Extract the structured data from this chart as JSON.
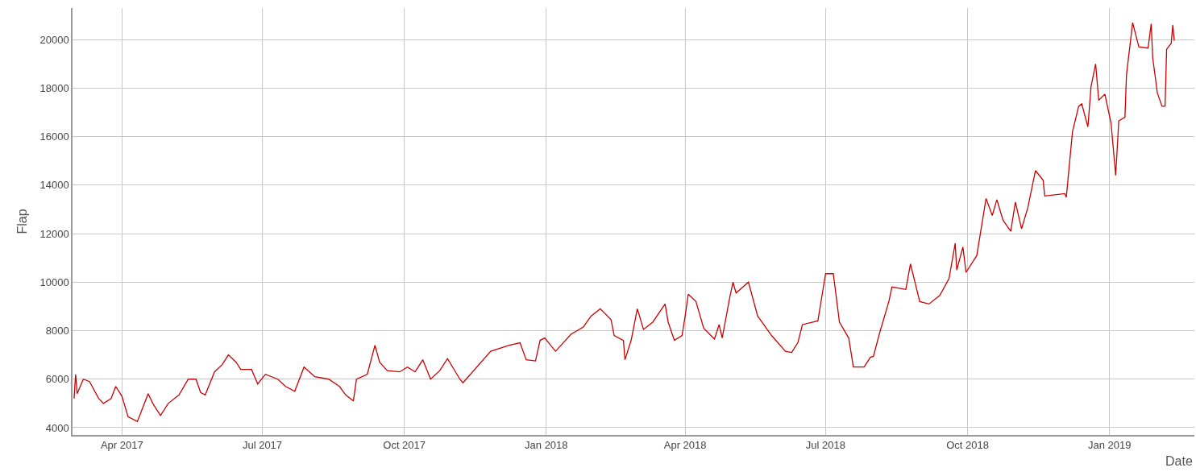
{
  "chart_data": {
    "type": "line",
    "xlabel": "Date",
    "ylabel": "Flap",
    "grid": true,
    "marker": "none",
    "line_style": "solid",
    "xlim": [
      "2017-02-28",
      "2019-02-25"
    ],
    "ylim": [
      3700,
      21300
    ],
    "xticks": [
      {
        "value": "2017-04-01",
        "label": "Apr 2017"
      },
      {
        "value": "2017-07-01",
        "label": "Jul 2017"
      },
      {
        "value": "2017-10-01",
        "label": "Oct 2017"
      },
      {
        "value": "2018-01-01",
        "label": "Jan 2018"
      },
      {
        "value": "2018-04-01",
        "label": "Apr 2018"
      },
      {
        "value": "2018-07-01",
        "label": "Jul 2018"
      },
      {
        "value": "2018-10-01",
        "label": "Oct 2018"
      },
      {
        "value": "2019-01-01",
        "label": "Jan 2019"
      }
    ],
    "yticks": [
      4000,
      6000,
      8000,
      10000,
      12000,
      14000,
      16000,
      18000,
      20000
    ],
    "x": [
      "2017-03-01",
      "2017-03-02",
      "2017-03-03",
      "2017-03-07",
      "2017-03-11",
      "2017-03-17",
      "2017-03-20",
      "2017-03-25",
      "2017-03-28",
      "2017-04-01",
      "2017-04-05",
      "2017-04-11",
      "2017-04-18",
      "2017-04-21",
      "2017-04-26",
      "2017-05-01",
      "2017-05-08",
      "2017-05-14",
      "2017-05-19",
      "2017-05-22",
      "2017-05-25",
      "2017-05-31",
      "2017-06-05",
      "2017-06-09",
      "2017-06-14",
      "2017-06-17",
      "2017-06-24",
      "2017-06-28",
      "2017-07-03",
      "2017-07-11",
      "2017-07-16",
      "2017-07-22",
      "2017-07-28",
      "2017-08-04",
      "2017-08-13",
      "2017-08-20",
      "2017-08-24",
      "2017-08-29",
      "2017-08-31",
      "2017-09-07",
      "2017-09-12",
      "2017-09-15",
      "2017-09-20",
      "2017-09-28",
      "2017-10-03",
      "2017-10-08",
      "2017-10-13",
      "2017-10-18",
      "2017-10-24",
      "2017-10-29",
      "2017-11-06",
      "2017-11-08",
      "2017-11-26",
      "2017-12-08",
      "2017-12-15",
      "2017-12-19",
      "2017-12-25",
      "2017-12-28",
      "2017-12-31",
      "2018-01-07",
      "2018-01-17",
      "2018-01-25",
      "2018-01-30",
      "2018-02-05",
      "2018-02-12",
      "2018-02-14",
      "2018-02-20",
      "2018-02-21",
      "2018-02-25",
      "2018-03-01",
      "2018-03-05",
      "2018-03-11",
      "2018-03-19",
      "2018-03-21",
      "2018-03-25",
      "2018-03-30",
      "2018-04-01",
      "2018-04-03",
      "2018-04-08",
      "2018-04-13",
      "2018-04-20",
      "2018-04-23",
      "2018-04-25",
      "2018-04-30",
      "2018-05-02",
      "2018-05-04",
      "2018-05-12",
      "2018-05-18",
      "2018-05-27",
      "2018-06-05",
      "2018-06-09",
      "2018-06-13",
      "2018-06-16",
      "2018-06-26",
      "2018-07-01",
      "2018-07-06",
      "2018-07-10",
      "2018-07-16",
      "2018-07-19",
      "2018-07-26",
      "2018-07-30",
      "2018-08-01",
      "2018-08-05",
      "2018-08-11",
      "2018-08-13",
      "2018-08-22",
      "2018-08-25",
      "2018-08-31",
      "2018-09-06",
      "2018-09-13",
      "2018-09-19",
      "2018-09-23",
      "2018-09-24",
      "2018-09-28",
      "2018-09-30",
      "2018-10-07",
      "2018-10-13",
      "2018-10-17",
      "2018-10-20",
      "2018-10-24",
      "2018-10-29",
      "2018-11-01",
      "2018-11-05",
      "2018-11-09",
      "2018-11-14",
      "2018-11-19",
      "2018-11-20",
      "2018-12-03",
      "2018-12-04",
      "2018-12-08",
      "2018-12-12",
      "2018-12-14",
      "2018-12-18",
      "2018-12-20",
      "2018-12-23",
      "2018-12-25",
      "2018-12-29",
      "2019-01-02",
      "2019-01-05",
      "2019-01-07",
      "2019-01-11",
      "2019-01-12",
      "2019-01-16",
      "2019-01-20",
      "2019-01-26",
      "2019-01-28",
      "2019-01-29",
      "2019-02-01",
      "2019-02-04",
      "2019-02-06",
      "2019-02-07",
      "2019-02-10",
      "2019-02-11",
      "2019-02-12"
    ],
    "series": [
      {
        "color": "#cc0000",
        "values": [
          5200,
          6200,
          5400,
          6000,
          5900,
          5200,
          5000,
          5200,
          5700,
          5300,
          4450,
          4250,
          5400,
          5000,
          4500,
          5000,
          5350,
          6000,
          6000,
          5450,
          5350,
          6300,
          6600,
          7000,
          6700,
          6400,
          6400,
          5800,
          6200,
          6000,
          5700,
          5500,
          6500,
          6100,
          6000,
          5700,
          5350,
          5100,
          6000,
          6200,
          7400,
          6700,
          6350,
          6300,
          6500,
          6300,
          6800,
          6000,
          6350,
          6850,
          6000,
          5850,
          7150,
          7400,
          7500,
          6800,
          6750,
          7600,
          7700,
          7150,
          7850,
          8150,
          8600,
          8900,
          8450,
          7800,
          7600,
          6800,
          7600,
          8900,
          8050,
          8350,
          9100,
          8350,
          7600,
          7800,
          8600,
          9500,
          9200,
          8100,
          7650,
          8250,
          7700,
          9400,
          10000,
          9550,
          10000,
          8600,
          7800,
          7150,
          7100,
          7500,
          8250,
          8400,
          10350,
          10350,
          8350,
          7700,
          6500,
          6500,
          6900,
          6940,
          7900,
          9200,
          9800,
          9700,
          10750,
          9200,
          9100,
          9450,
          10150,
          11600,
          10500,
          11450,
          10400,
          11100,
          13450,
          12750,
          13400,
          12550,
          12100,
          13300,
          12200,
          13050,
          14600,
          14200,
          13550,
          13650,
          13500,
          16200,
          17250,
          17350,
          16400,
          18050,
          19000,
          17500,
          17750,
          16550,
          14400,
          16650,
          16800,
          18550,
          20700,
          19700,
          19650,
          20650,
          19250,
          17800,
          17250,
          17250,
          19600,
          19850,
          20600,
          19950
        ]
      }
    ]
  }
}
